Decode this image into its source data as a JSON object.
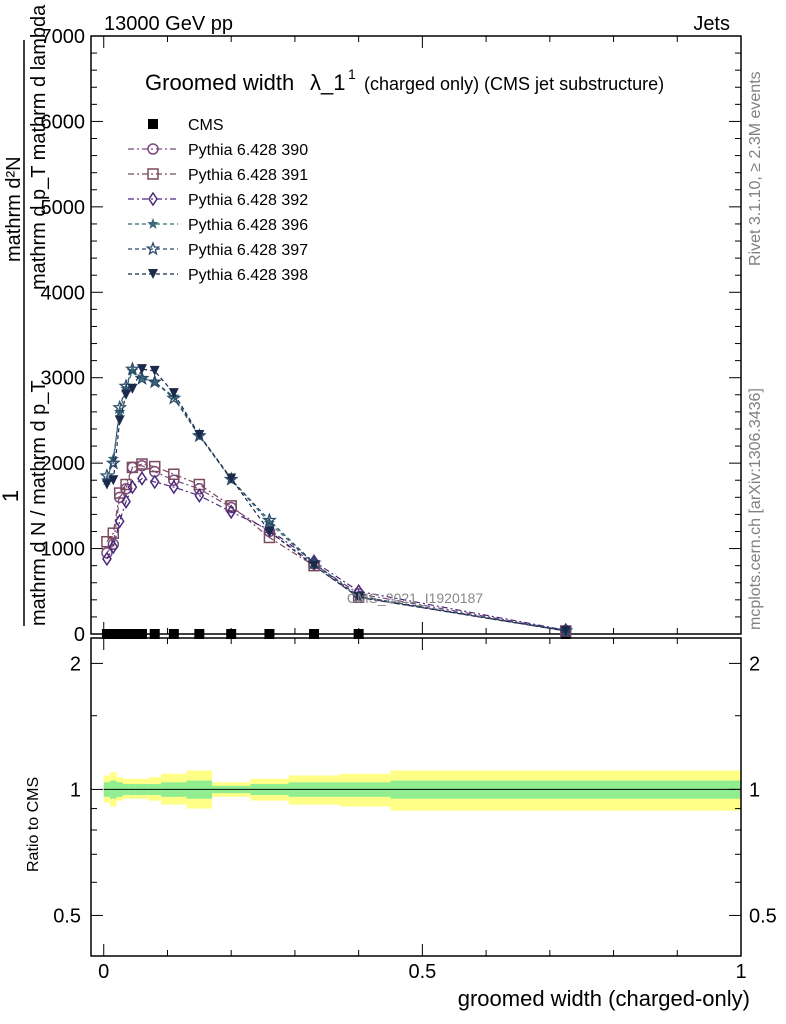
{
  "header": {
    "left": "13000 GeV pp",
    "right": "Jets"
  },
  "side_labels": {
    "top": "Rivet 3.1.10, ≥ 2.3M events",
    "bottom": "mcplots.cern.ch [arXiv:1306.3436]"
  },
  "watermark": "CMS_2021_I1920187",
  "colors": {
    "cms": "#000000",
    "p390": "#7a4a7e",
    "p391": "#7a4a5e",
    "p392": "#4a2a7a",
    "p396": "#3a6a7a",
    "p397": "#2a4a6a",
    "p398": "#1a2a4a",
    "band_inner": "#90ee90",
    "band_outer": "#ffff88"
  },
  "chart_data": [
    {
      "type": "line",
      "title": "Groomed width",
      "title_math": "λ_1",
      "title_sup": "1",
      "title_suffix": "(charged only) (CMS jet substructure)",
      "ylabel_numerator_1": "mathrm d²N",
      "ylabel_numerator_2": "mathrm d p_T mathrm d lambda",
      "ylabel_denominator": "mathrm d N / mathrm d p_T",
      "ylabel_one": "1",
      "ylim": [
        0,
        7000
      ],
      "xlim": [
        -0.02,
        1.0
      ],
      "yticks": [
        "0",
        "1000",
        "2000",
        "3000",
        "4000",
        "5000",
        "6000",
        "7000"
      ],
      "xticks": [
        "0",
        "0.5",
        "1"
      ],
      "legend_position": "top-left",
      "x": [
        0.005,
        0.015,
        0.025,
        0.035,
        0.045,
        0.06,
        0.08,
        0.11,
        0.15,
        0.2,
        0.26,
        0.33,
        0.4,
        0.725
      ],
      "series": [
        {
          "name": "CMS",
          "marker": "square",
          "values": [
            0,
            0,
            0,
            0,
            0,
            0,
            0,
            0,
            0,
            0,
            0,
            0,
            0,
            0
          ]
        },
        {
          "name": "Pythia 6.428 390",
          "marker": "circle",
          "values": [
            950,
            1050,
            1600,
            1700,
            1950,
            1970,
            1900,
            1800,
            1700,
            1480,
            1200,
            820,
            470,
            40
          ]
        },
        {
          "name": "Pythia 6.428 391",
          "marker": "open-square",
          "values": [
            1080,
            1180,
            1650,
            1750,
            1950,
            1990,
            1960,
            1870,
            1750,
            1500,
            1130,
            800,
            430,
            35
          ]
        },
        {
          "name": "Pythia 6.428 392",
          "marker": "diamond",
          "values": [
            880,
            1020,
            1320,
            1550,
            1720,
            1820,
            1780,
            1720,
            1620,
            1430,
            1220,
            850,
            500,
            45
          ]
        },
        {
          "name": "Pythia 6.428 396",
          "marker": "star-filled",
          "values": [
            1800,
            2050,
            2600,
            2870,
            3080,
            3000,
            2950,
            2780,
            2330,
            1810,
            1300,
            820,
            440,
            38
          ]
        },
        {
          "name": "Pythia 6.428 397",
          "marker": "star-open",
          "values": [
            1850,
            2000,
            2650,
            2900,
            3100,
            2990,
            2950,
            2760,
            2320,
            1810,
            1330,
            830,
            440,
            38
          ]
        },
        {
          "name": "Pythia 6.428 398",
          "marker": "triangle-down",
          "values": [
            1750,
            1800,
            2500,
            2800,
            2870,
            3100,
            3080,
            2820,
            2330,
            1820,
            1200,
            800,
            430,
            35
          ]
        }
      ]
    },
    {
      "type": "line",
      "ylabel": "Ratio to CMS",
      "xlabel": "groomed width (charged-only)",
      "ylim": [
        0.4,
        2.3
      ],
      "log_scale": true,
      "yticks": [
        "0.5",
        "1",
        "2"
      ],
      "xticks": [
        "0",
        "0.5",
        "1"
      ],
      "bins": [
        0,
        0.01,
        0.02,
        0.03,
        0.04,
        0.05,
        0.07,
        0.09,
        0.13,
        0.17,
        0.23,
        0.29,
        0.37,
        0.45,
        1.0
      ],
      "band_inner_low": [
        0.96,
        0.95,
        0.96,
        0.97,
        0.97,
        0.97,
        0.97,
        0.96,
        0.95,
        0.98,
        0.97,
        0.96,
        0.96,
        0.95
      ],
      "band_inner_high": [
        1.04,
        1.05,
        1.04,
        1.03,
        1.03,
        1.03,
        1.03,
        1.04,
        1.05,
        1.02,
        1.03,
        1.04,
        1.04,
        1.05
      ],
      "band_outer_low": [
        0.93,
        0.91,
        0.94,
        0.95,
        0.95,
        0.95,
        0.94,
        0.92,
        0.9,
        0.96,
        0.94,
        0.92,
        0.91,
        0.89
      ],
      "band_outer_high": [
        1.08,
        1.1,
        1.07,
        1.06,
        1.06,
        1.06,
        1.07,
        1.09,
        1.11,
        1.04,
        1.06,
        1.08,
        1.09,
        1.11
      ]
    }
  ]
}
